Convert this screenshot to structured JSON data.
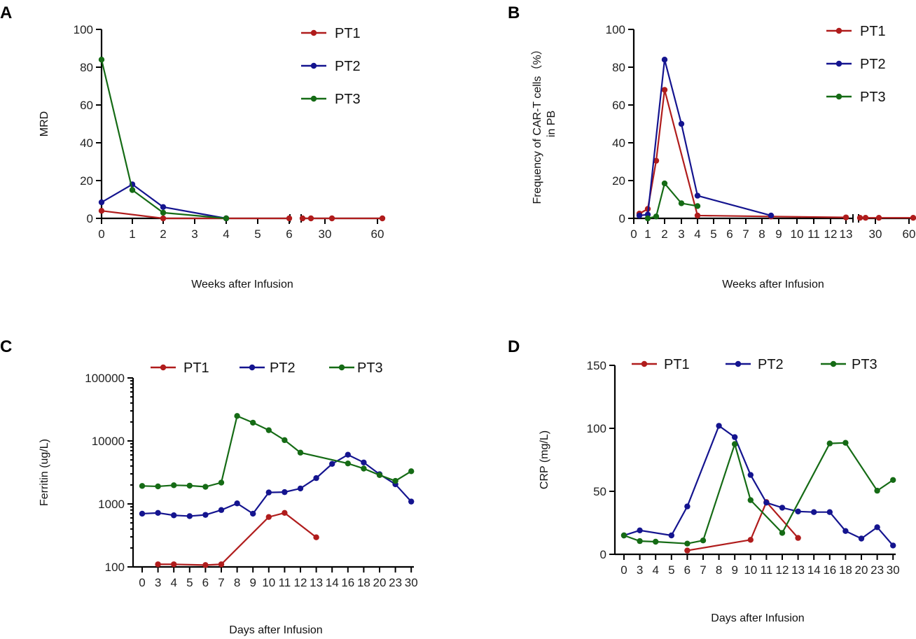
{
  "colors": {
    "PT1": "#b01c1c",
    "PT2": "#14148f",
    "PT3": "#156b15"
  },
  "chart_data": [
    {
      "panel": "A",
      "type": "line",
      "ylabel": "MRD",
      "xlabel": "Weeks after Infusion",
      "ylim": [
        0,
        100
      ],
      "yticks": [
        "0",
        "20",
        "40",
        "60",
        "80",
        "100"
      ],
      "xticks": [
        "0",
        "1",
        "2",
        "3",
        "4",
        "5",
        "6",
        "30",
        "60"
      ],
      "axis_break": "between 6 and 30",
      "legend": [
        "PT1",
        "PT2",
        "PT3"
      ],
      "series": [
        {
          "name": "PT1",
          "x": [
            0,
            2,
            4,
            6,
            20,
            23,
            32,
            62
          ],
          "y": [
            4,
            0,
            0,
            0,
            0,
            0,
            0,
            0
          ]
        },
        {
          "name": "PT2",
          "x": [
            0,
            1,
            2,
            4
          ],
          "y": [
            8.5,
            18,
            6,
            0
          ]
        },
        {
          "name": "PT3",
          "x": [
            0,
            1,
            2,
            4
          ],
          "y": [
            84,
            15,
            3,
            0
          ]
        }
      ]
    },
    {
      "panel": "B",
      "type": "line",
      "ylabel": "Frequency of CAR-T cells（%）\nin PB",
      "xlabel": "Weeks after Infusion",
      "ylim": [
        0,
        100
      ],
      "yticks": [
        "0",
        "20",
        "40",
        "60",
        "80",
        "100"
      ],
      "xticks": [
        "0",
        "1",
        "2",
        "3",
        "4",
        "5",
        "6",
        "7",
        "8",
        "9",
        "10",
        "11",
        "12",
        "13",
        "30",
        "60"
      ],
      "axis_break": "between 13 and 30",
      "legend": [
        "PT1",
        "PT2",
        "PT3"
      ],
      "series": [
        {
          "name": "PT1",
          "x": [
            0.5,
            1,
            1.5,
            2,
            4,
            8.5,
            13,
            20,
            23,
            32,
            62
          ],
          "y": [
            2.5,
            5,
            30.5,
            68,
            1.5,
            1,
            0.5,
            0.3,
            0.3,
            0.3,
            0.3
          ]
        },
        {
          "name": "PT2",
          "x": [
            0.5,
            1,
            2,
            3,
            4,
            8.5
          ],
          "y": [
            1.5,
            2,
            84,
            50,
            12,
            1.5
          ]
        },
        {
          "name": "PT3",
          "x": [
            1,
            1.5,
            2,
            3,
            4
          ],
          "y": [
            0,
            1,
            18.5,
            8,
            6.5
          ]
        }
      ]
    },
    {
      "panel": "C",
      "type": "line",
      "ylabel": "Ferritin (ug/L)",
      "xlabel": "Days after Infusion",
      "yscale": "log",
      "ylim": [
        100,
        100000
      ],
      "yticks": [
        "100",
        "1000",
        "10000",
        "100000"
      ],
      "xticks": [
        "0",
        "3",
        "4",
        "5",
        "6",
        "7",
        "8",
        "9",
        "10",
        "11",
        "12",
        "13",
        "14",
        "16",
        "18",
        "20",
        "23",
        "30"
      ],
      "legend": [
        "PT1",
        "PT2",
        "PT3"
      ],
      "series": [
        {
          "name": "PT1",
          "x": [
            "3",
            "4",
            "6",
            "7",
            "10",
            "11",
            "13"
          ],
          "y": [
            110,
            110,
            107,
            110,
            620,
            720,
            295
          ]
        },
        {
          "name": "PT2",
          "x": [
            "0",
            "3",
            "4",
            "5",
            "6",
            "7",
            "8",
            "9",
            "10",
            "11",
            "12",
            "13",
            "14",
            "16",
            "18",
            "20",
            "23",
            "30"
          ],
          "y": [
            700,
            720,
            660,
            640,
            670,
            800,
            1020,
            700,
            1520,
            1540,
            1760,
            2570,
            4320,
            6040,
            4550,
            2960,
            2050,
            1090
          ]
        },
        {
          "name": "PT3",
          "x": [
            "0",
            "3",
            "4",
            "5",
            "6",
            "7",
            "8",
            "9",
            "10",
            "11",
            "12",
            "16",
            "18",
            "20",
            "23",
            "30"
          ],
          "y": [
            1930,
            1900,
            1980,
            1950,
            1870,
            2180,
            24900,
            19500,
            14800,
            10300,
            6520,
            4390,
            3640,
            2870,
            2320,
            3300
          ]
        }
      ]
    },
    {
      "panel": "D",
      "type": "line",
      "ylabel": "CRP (mg/L)",
      "xlabel": "Days after Infusion",
      "ylim": [
        0,
        150
      ],
      "yticks": [
        "0",
        "50",
        "100",
        "150"
      ],
      "xticks": [
        "0",
        "3",
        "4",
        "5",
        "6",
        "7",
        "8",
        "9",
        "10",
        "11",
        "12",
        "13",
        "14",
        "16",
        "18",
        "20",
        "23",
        "30"
      ],
      "legend": [
        "PT1",
        "PT2",
        "PT3"
      ],
      "series": [
        {
          "name": "PT1",
          "x": [
            "6",
            "10",
            "11",
            "13"
          ],
          "y": [
            3,
            11.5,
            41.5,
            13
          ]
        },
        {
          "name": "PT2",
          "x": [
            "0",
            "3",
            "5",
            "6",
            "8",
            "9",
            "10",
            "11",
            "12",
            "13",
            "14",
            "16",
            "18",
            "20",
            "23",
            "30"
          ],
          "y": [
            15,
            19,
            15,
            38,
            102,
            93,
            63,
            41,
            37,
            34,
            33.5,
            33.5,
            18.5,
            12.5,
            21.5,
            7
          ]
        },
        {
          "name": "PT3",
          "x": [
            "0",
            "3",
            "4",
            "6",
            "7",
            "9",
            "10",
            "12",
            "16",
            "18",
            "23",
            "30"
          ],
          "y": [
            15,
            10.5,
            10,
            8.5,
            11,
            87.5,
            43,
            17,
            88,
            88.5,
            50.5,
            59
          ]
        }
      ]
    }
  ]
}
